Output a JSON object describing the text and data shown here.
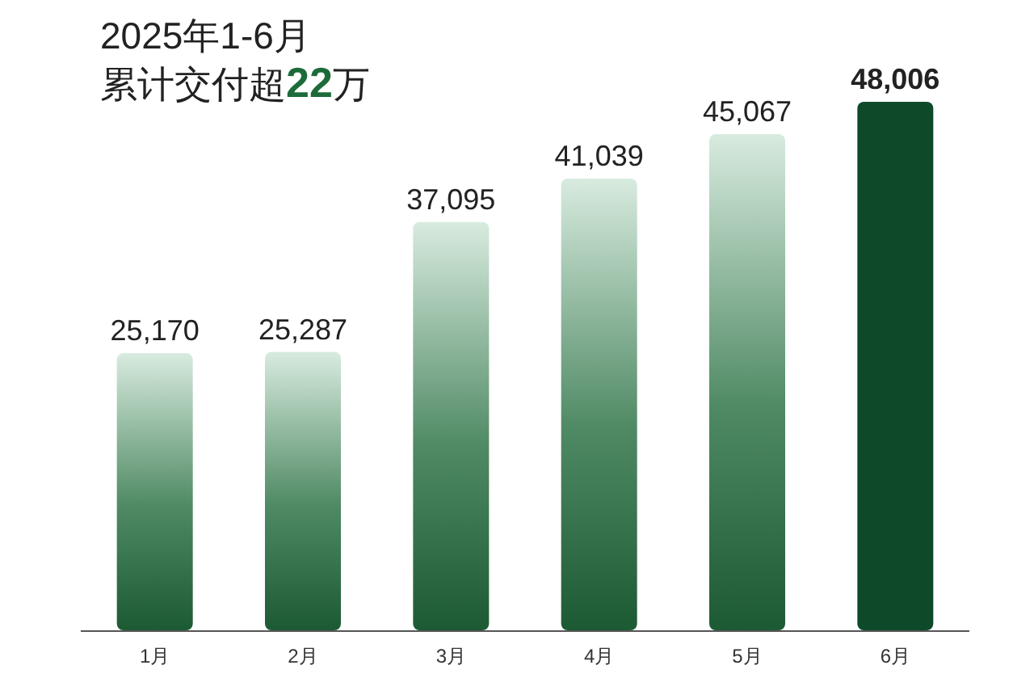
{
  "chart_data": {
    "type": "bar",
    "title": "2025年1-6月",
    "subtitle": "累计交付超22万",
    "categories": [
      "1月",
      "2月",
      "3月",
      "4月",
      "5月",
      "6月"
    ],
    "values": [
      25170,
      25287,
      37095,
      41039,
      45067,
      48006
    ],
    "value_labels": [
      "25,170",
      "25,287",
      "37,095",
      "41,039",
      "45,067",
      "48,006"
    ],
    "colors": [
      "#4f8a64",
      "#4f8a64",
      "#4f8a64",
      "#4f8a64",
      "#4f8a64",
      "#0e4a2a"
    ]
  }
}
